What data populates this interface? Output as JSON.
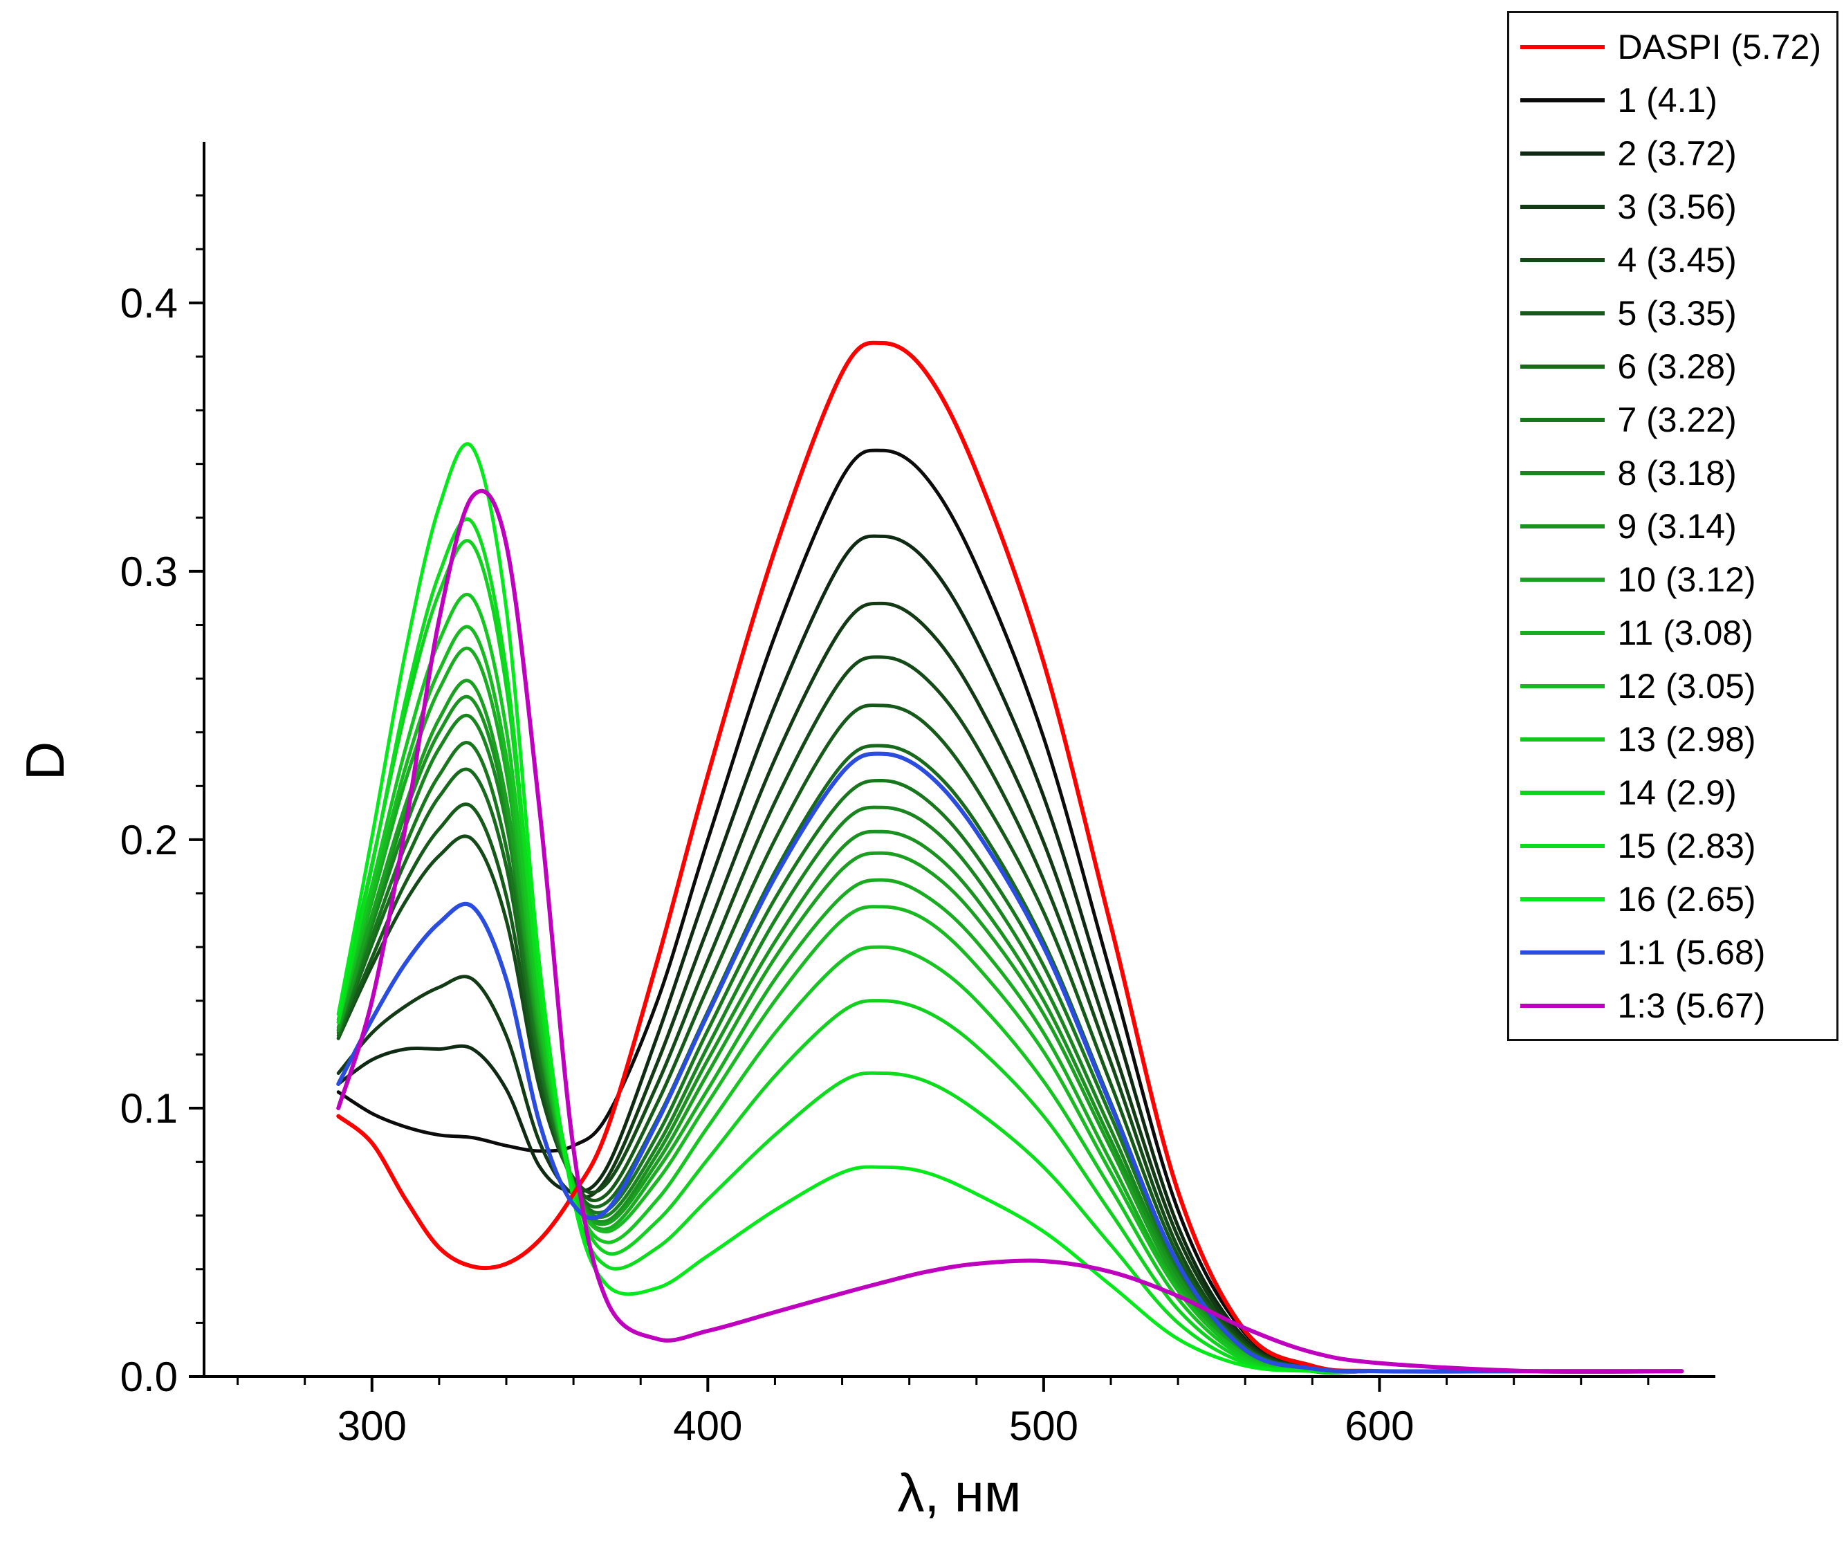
{
  "figure": {
    "background": "#ffffff",
    "ylabel": "D",
    "xlabel": "λ, нм",
    "axis_color": "#000000",
    "x_ticks_major": [
      300,
      400,
      500,
      600
    ],
    "x_minor_step": 20,
    "y_ticks_major": [
      0.0,
      0.1,
      0.2,
      0.3,
      0.4
    ],
    "y_minor_step": 0.02
  },
  "chart_data": {
    "type": "line",
    "title": "",
    "xlabel": "λ, нм",
    "ylabel": "D",
    "xlim": [
      250,
      700
    ],
    "ylim": [
      0,
      0.46
    ],
    "grid": false,
    "legend_position": "top-right",
    "x_nm": [
      290,
      300,
      310,
      320,
      330,
      340,
      350,
      360,
      370,
      385,
      400,
      420,
      440,
      452,
      465,
      480,
      500,
      520,
      540,
      560,
      580,
      600,
      645,
      690
    ],
    "series": [
      {
        "name": "1 (4.1)",
        "color": "#0b0b0b",
        "width": 5,
        "y": [
          0.106,
          0.098,
          0.093,
          0.09,
          0.089,
          0.086,
          0.084,
          0.086,
          0.097,
          0.14,
          0.2,
          0.276,
          0.335,
          0.345,
          0.335,
          0.302,
          0.238,
          0.15,
          0.062,
          0.016,
          0.003,
          0.002,
          0.002,
          0.002
        ]
      },
      {
        "name": "2 (3.72)",
        "color": "#0f2a12",
        "width": 5,
        "y": [
          0.109,
          0.118,
          0.122,
          0.122,
          0.122,
          0.107,
          0.078,
          0.069,
          0.078,
          0.127,
          0.182,
          0.25,
          0.304,
          0.313,
          0.304,
          0.274,
          0.216,
          0.136,
          0.056,
          0.014,
          0.003,
          0.002,
          0.002,
          0.002
        ]
      },
      {
        "name": "3 (3.56)",
        "color": "#123a15",
        "width": 5,
        "y": [
          0.113,
          0.128,
          0.138,
          0.145,
          0.148,
          0.127,
          0.087,
          0.068,
          0.074,
          0.117,
          0.167,
          0.23,
          0.279,
          0.288,
          0.279,
          0.252,
          0.199,
          0.125,
          0.052,
          0.013,
          0.003,
          0.002,
          0.002,
          0.002
        ]
      },
      {
        "name": "4 (3.45)",
        "color": "#144a17",
        "width": 5,
        "y": [
          0.126,
          0.153,
          0.177,
          0.194,
          0.2,
          0.17,
          0.107,
          0.074,
          0.072,
          0.109,
          0.155,
          0.214,
          0.26,
          0.268,
          0.26,
          0.235,
          0.185,
          0.117,
          0.048,
          0.012,
          0.003,
          0.002,
          0.002,
          0.002
        ]
      },
      {
        "name": "5 (3.35)",
        "color": "#165a19",
        "width": 5,
        "y": [
          0.126,
          0.156,
          0.184,
          0.204,
          0.212,
          0.179,
          0.111,
          0.073,
          0.068,
          0.102,
          0.145,
          0.2,
          0.243,
          0.25,
          0.243,
          0.219,
          0.173,
          0.109,
          0.045,
          0.011,
          0.003,
          0.002,
          0.002,
          0.002
        ]
      },
      {
        "name": "6 (3.28)",
        "color": "#17691b",
        "width": 5,
        "y": [
          0.127,
          0.161,
          0.192,
          0.216,
          0.225,
          0.19,
          0.115,
          0.072,
          0.065,
          0.096,
          0.136,
          0.188,
          0.228,
          0.235,
          0.228,
          0.206,
          0.162,
          0.102,
          0.042,
          0.011,
          0.002,
          0.002,
          0.002,
          0.002
        ]
      },
      {
        "name": "7 (3.22)",
        "color": "#18771c",
        "width": 5,
        "y": [
          0.128,
          0.164,
          0.198,
          0.224,
          0.235,
          0.197,
          0.118,
          0.072,
          0.062,
          0.09,
          0.129,
          0.178,
          0.215,
          0.222,
          0.215,
          0.194,
          0.153,
          0.097,
          0.04,
          0.01,
          0.002,
          0.002,
          0.002,
          0.002
        ]
      },
      {
        "name": "8 (3.18)",
        "color": "#19851e",
        "width": 5,
        "y": [
          0.129,
          0.168,
          0.205,
          0.234,
          0.245,
          0.206,
          0.122,
          0.072,
          0.06,
          0.086,
          0.123,
          0.17,
          0.206,
          0.212,
          0.206,
          0.186,
          0.146,
          0.092,
          0.038,
          0.01,
          0.002,
          0.002,
          0.002,
          0.002
        ]
      },
      {
        "name": "9 (3.14)",
        "color": "#1a921f",
        "width": 5,
        "y": [
          0.129,
          0.17,
          0.21,
          0.24,
          0.252,
          0.211,
          0.124,
          0.072,
          0.058,
          0.083,
          0.118,
          0.162,
          0.197,
          0.203,
          0.197,
          0.178,
          0.14,
          0.088,
          0.037,
          0.009,
          0.002,
          0.002,
          0.002,
          0.002
        ]
      },
      {
        "name": "10 (3.12)",
        "color": "#1a9f20",
        "width": 5,
        "y": [
          0.13,
          0.172,
          0.213,
          0.245,
          0.258,
          0.215,
          0.126,
          0.071,
          0.057,
          0.08,
          0.113,
          0.156,
          0.189,
          0.195,
          0.189,
          0.171,
          0.135,
          0.085,
          0.035,
          0.009,
          0.002,
          0.002,
          0.002,
          0.002
        ]
      },
      {
        "name": "11 (3.08)",
        "color": "#19ac21",
        "width": 5,
        "y": [
          0.132,
          0.177,
          0.222,
          0.256,
          0.27,
          0.225,
          0.129,
          0.071,
          0.055,
          0.077,
          0.107,
          0.148,
          0.179,
          0.185,
          0.179,
          0.162,
          0.128,
          0.08,
          0.033,
          0.008,
          0.002,
          0.002,
          0.002,
          0.002
        ]
      },
      {
        "name": "12 (3.05)",
        "color": "#18b921",
        "width": 5,
        "y": [
          0.132,
          0.179,
          0.227,
          0.263,
          0.278,
          0.231,
          0.132,
          0.071,
          0.054,
          0.073,
          0.102,
          0.14,
          0.17,
          0.175,
          0.17,
          0.153,
          0.121,
          0.076,
          0.032,
          0.008,
          0.002,
          0.002,
          0.002,
          0.002
        ]
      },
      {
        "name": "13 (2.98)",
        "color": "#15c520",
        "width": 5,
        "y": [
          0.133,
          0.183,
          0.234,
          0.274,
          0.29,
          0.241,
          0.136,
          0.07,
          0.05,
          0.066,
          0.093,
          0.128,
          0.155,
          0.16,
          0.155,
          0.14,
          0.11,
          0.07,
          0.029,
          0.007,
          0.002,
          0.002,
          0.002,
          0.002
        ]
      },
      {
        "name": "14 (2.9)",
        "color": "#11d11f",
        "width": 5,
        "y": [
          0.135,
          0.191,
          0.248,
          0.292,
          0.31,
          0.257,
          0.142,
          0.071,
          0.046,
          0.058,
          0.081,
          0.112,
          0.136,
          0.14,
          0.136,
          0.123,
          0.097,
          0.061,
          0.025,
          0.006,
          0.002,
          0.002,
          0.002,
          0.002
        ]
      },
      {
        "name": "15 (2.83)",
        "color": "#0bdd1d",
        "width": 5,
        "y": [
          0.132,
          0.19,
          0.252,
          0.299,
          0.318,
          0.263,
          0.144,
          0.067,
          0.041,
          0.048,
          0.066,
          0.09,
          0.11,
          0.113,
          0.11,
          0.099,
          0.078,
          0.049,
          0.02,
          0.005,
          0.002,
          0.002,
          0.002,
          0.002
        ]
      },
      {
        "name": "16 (2.65)",
        "color": "#03ea1a",
        "width": 5,
        "y": [
          0.135,
          0.201,
          0.27,
          0.324,
          0.346,
          0.286,
          0.152,
          0.066,
          0.034,
          0.033,
          0.045,
          0.062,
          0.076,
          0.078,
          0.076,
          0.068,
          0.054,
          0.034,
          0.014,
          0.004,
          0.002,
          0.002,
          0.002,
          0.002
        ]
      },
      {
        "name": "DASPI (5.72)",
        "color": "#ff0000",
        "width": 6,
        "y": [
          0.097,
          0.087,
          0.066,
          0.048,
          0.041,
          0.042,
          0.051,
          0.068,
          0.092,
          0.155,
          0.224,
          0.308,
          0.374,
          0.385,
          0.374,
          0.337,
          0.266,
          0.168,
          0.069,
          0.017,
          0.004,
          0.002,
          0.002,
          0.002
        ]
      },
      {
        "name": "1:1 (5.68)",
        "color": "#2a4cdf",
        "width": 6,
        "y": [
          0.109,
          0.133,
          0.154,
          0.169,
          0.175,
          0.148,
          0.094,
          0.064,
          0.062,
          0.095,
          0.135,
          0.186,
          0.225,
          0.232,
          0.225,
          0.203,
          0.16,
          0.101,
          0.042,
          0.01,
          0.003,
          0.002,
          0.002,
          0.002
        ]
      },
      {
        "name": "1:3 (5.67)",
        "color": "#bf00bf",
        "width": 6,
        "y": [
          0.1,
          0.14,
          0.205,
          0.282,
          0.328,
          0.31,
          0.21,
          0.085,
          0.028,
          0.014,
          0.017,
          0.024,
          0.031,
          0.035,
          0.039,
          0.042,
          0.043,
          0.039,
          0.03,
          0.018,
          0.009,
          0.005,
          0.002,
          0.002
        ]
      }
    ],
    "legend_order": [
      "DASPI (5.72)",
      "1 (4.1)",
      "2 (3.72)",
      "3 (3.56)",
      "4 (3.45)",
      "5 (3.35)",
      "6 (3.28)",
      "7 (3.22)",
      "8 (3.18)",
      "9 (3.14)",
      "10 (3.12)",
      "11 (3.08)",
      "12 (3.05)",
      "13 (2.98)",
      "14 (2.9)",
      "15 (2.83)",
      "16 (2.65)",
      "1:1 (5.68)",
      "1:3 (5.67)"
    ]
  }
}
